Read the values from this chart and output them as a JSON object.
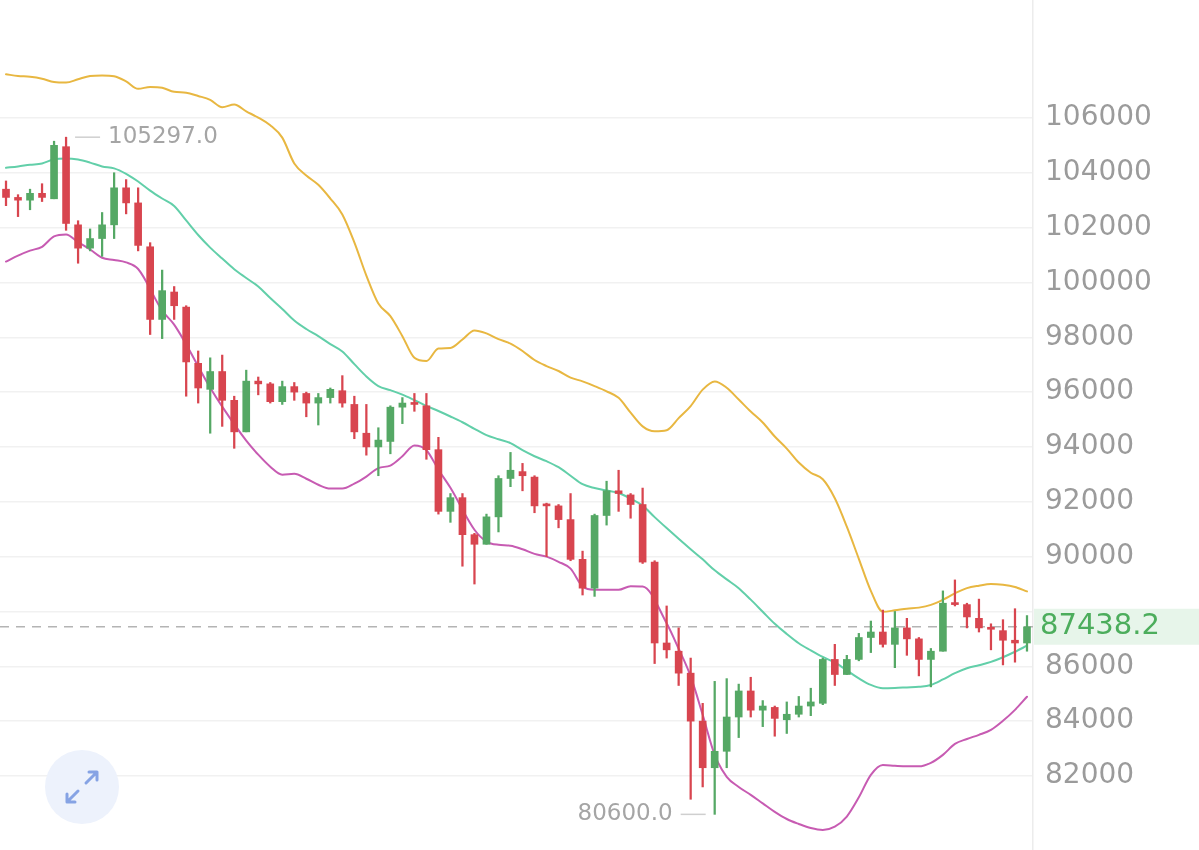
{
  "chart_data": {
    "type": "candlestick",
    "categories": [
      null,
      null,
      null,
      null,
      null,
      null,
      null,
      null,
      null,
      null,
      null,
      null,
      null,
      null,
      null,
      null,
      null,
      null,
      null,
      null,
      null,
      null,
      null,
      null,
      null,
      null,
      null,
      null,
      null,
      null,
      null,
      null,
      null,
      null,
      null,
      null,
      null,
      null,
      null,
      null,
      null,
      null,
      null,
      null,
      null,
      null,
      null,
      null,
      null,
      null,
      null,
      null,
      null,
      null,
      null,
      null,
      null,
      null,
      null,
      null,
      null,
      null,
      null,
      null,
      null,
      null,
      null,
      null,
      null,
      null,
      null,
      null,
      null,
      null,
      null,
      null,
      null,
      null,
      null,
      null,
      null,
      null,
      null,
      null,
      null,
      null
    ],
    "ohlc": [
      [
        103400,
        103700,
        102800,
        103100
      ],
      [
        103100,
        103200,
        102400,
        103000
      ],
      [
        103000,
        103400,
        102650,
        103250
      ],
      [
        103250,
        103600,
        102950,
        103100
      ],
      [
        103050,
        105150,
        103050,
        105000
      ],
      [
        104950,
        105297,
        101900,
        102150
      ],
      [
        102100,
        102250,
        100700,
        101250
      ],
      [
        101250,
        101950,
        101150,
        101600
      ],
      [
        101600,
        102550,
        100950,
        102100
      ],
      [
        102100,
        104000,
        101600,
        103450
      ],
      [
        103450,
        103750,
        102500,
        102900
      ],
      [
        102900,
        103450,
        101150,
        101350
      ],
      [
        101300,
        101450,
        98100,
        98650
      ],
      [
        98650,
        100450,
        97950,
        99700
      ],
      [
        99650,
        99850,
        98650,
        99150
      ],
      [
        99100,
        99150,
        95850,
        97100
      ],
      [
        97050,
        97500,
        95600,
        96150
      ],
      [
        96100,
        97250,
        94500,
        96750
      ],
      [
        96750,
        97350,
        94750,
        95700
      ],
      [
        95700,
        95850,
        93950,
        94550
      ],
      [
        94550,
        96800,
        94550,
        96400
      ],
      [
        96400,
        96550,
        95900,
        96300
      ],
      [
        96300,
        96350,
        95600,
        95650
      ],
      [
        95650,
        96400,
        95550,
        96200
      ],
      [
        96200,
        96350,
        95700,
        96000
      ],
      [
        95950,
        96000,
        95100,
        95600
      ],
      [
        95600,
        95950,
        94800,
        95800
      ],
      [
        95800,
        96150,
        95600,
        96100
      ],
      [
        96050,
        96600,
        95450,
        95600
      ],
      [
        95550,
        95850,
        94300,
        94550
      ],
      [
        94500,
        95550,
        93700,
        94000
      ],
      [
        94000,
        94700,
        92950,
        94250
      ],
      [
        94200,
        95500,
        93750,
        95450
      ],
      [
        95450,
        95800,
        94850,
        95600
      ],
      [
        95600,
        95950,
        95300,
        95550
      ],
      [
        95500,
        95950,
        93550,
        93900
      ],
      [
        93900,
        94350,
        91550,
        91650
      ],
      [
        91650,
        92300,
        91250,
        92150
      ],
      [
        92150,
        92300,
        89650,
        90800
      ],
      [
        90800,
        90850,
        89000,
        90450
      ],
      [
        90450,
        91550,
        90450,
        91450
      ],
      [
        91450,
        92950,
        90900,
        92850
      ],
      [
        92850,
        93800,
        92550,
        93150
      ],
      [
        93100,
        93400,
        92400,
        92950
      ],
      [
        92900,
        92950,
        91600,
        91850
      ],
      [
        91900,
        91950,
        90000,
        91850
      ],
      [
        91850,
        91900,
        91050,
        91350
      ],
      [
        91350,
        92300,
        89850,
        89900
      ],
      [
        89900,
        90200,
        88600,
        88850
      ],
      [
        88850,
        91550,
        88550,
        91500
      ],
      [
        91500,
        92750,
        91150,
        92400
      ],
      [
        92400,
        93150,
        91650,
        92300
      ],
      [
        92250,
        92300,
        91400,
        91900
      ],
      [
        91900,
        92500,
        89750,
        89800
      ],
      [
        89800,
        89850,
        86100,
        86850
      ],
      [
        86850,
        88200,
        86300,
        86600
      ],
      [
        86550,
        87400,
        85300,
        85750
      ],
      [
        85750,
        86300,
        81150,
        84000
      ],
      [
        84000,
        84650,
        81600,
        82300
      ],
      [
        82300,
        85450,
        80600,
        82900
      ],
      [
        82900,
        85550,
        82300,
        84150
      ],
      [
        84150,
        85350,
        83400,
        85100
      ],
      [
        85100,
        85600,
        84150,
        84400
      ],
      [
        84400,
        84750,
        83800,
        84550
      ],
      [
        84500,
        84550,
        83450,
        84100
      ],
      [
        84050,
        84700,
        83550,
        84250
      ],
      [
        84250,
        84900,
        84150,
        84550
      ],
      [
        84550,
        85200,
        84200,
        84700
      ],
      [
        84650,
        86300,
        84600,
        86250
      ],
      [
        86250,
        86800,
        85300,
        85700
      ],
      [
        85700,
        86400,
        85700,
        86250
      ],
      [
        86250,
        87200,
        86200,
        87050
      ],
      [
        87050,
        87650,
        86500,
        87250
      ],
      [
        87250,
        88050,
        86700,
        86800
      ],
      [
        86800,
        88000,
        85950,
        87400
      ],
      [
        87400,
        87750,
        86400,
        87000
      ],
      [
        87000,
        87050,
        85650,
        86250
      ],
      [
        86250,
        86650,
        85250,
        86550
      ],
      [
        86550,
        88750,
        86550,
        88300
      ],
      [
        88300,
        89150,
        88200,
        88250
      ],
      [
        88250,
        88300,
        87400,
        87800
      ],
      [
        87750,
        88450,
        87250,
        87400
      ],
      [
        87400,
        87550,
        86600,
        87350
      ],
      [
        87300,
        87700,
        86050,
        86950
      ],
      [
        86950,
        88100,
        86150,
        86850
      ],
      [
        86850,
        87850,
        86550,
        87438.2
      ]
    ],
    "colors": [
      "#d8454f",
      "#d8454f",
      "#55a865",
      "#d8454f",
      "#55a865",
      "#d8454f",
      "#d8454f",
      "#55a865",
      "#55a865",
      "#55a865",
      "#d8454f",
      "#d8454f",
      "#d8454f",
      "#55a865",
      "#d8454f",
      "#d8454f",
      "#d8454f",
      "#55a865",
      "#d8454f",
      "#d8454f",
      "#55a865",
      "#d8454f",
      "#d8454f",
      "#55a865",
      "#d8454f",
      "#d8454f",
      "#55a865",
      "#55a865",
      "#d8454f",
      "#d8454f",
      "#d8454f",
      "#55a865",
      "#55a865",
      "#55a865",
      "#d8454f",
      "#d8454f",
      "#d8454f",
      "#55a865",
      "#d8454f",
      "#d8454f",
      "#55a865",
      "#55a865",
      "#55a865",
      "#d8454f",
      "#d8454f",
      "#d8454f",
      "#d8454f",
      "#d8454f",
      "#d8454f",
      "#55a865",
      "#55a865",
      "#d8454f",
      "#d8454f",
      "#d8454f",
      "#d8454f",
      "#d8454f",
      "#d8454f",
      "#d8454f",
      "#d8454f",
      "#55a865",
      "#55a865",
      "#55a865",
      "#d8454f",
      "#55a865",
      "#d8454f",
      "#55a865",
      "#55a865",
      "#55a865",
      "#55a865",
      "#d8454f",
      "#55a865",
      "#55a865",
      "#55a865",
      "#d8454f",
      "#55a865",
      "#d8454f",
      "#d8454f",
      "#55a865",
      "#55a865",
      "#d8454f",
      "#d8454f",
      "#d8454f",
      "#d8454f",
      "#d8454f",
      "#d8454f",
      "#55a865"
    ],
    "series": [
      {
        "type": "line",
        "color": "#e8b741",
        "values": [
          107590,
          107530,
          107500,
          107430,
          107310,
          107290,
          107410,
          107530,
          107550,
          107520,
          107330,
          107060,
          107130,
          107100,
          106950,
          106920,
          106800,
          106660,
          106390,
          106490,
          106240,
          106010,
          105730,
          105280,
          104340,
          103900,
          103560,
          103060,
          102480,
          101460,
          100250,
          99230,
          98770,
          98040,
          97250,
          97130,
          97590,
          97610,
          97920,
          98250,
          98140,
          97930,
          97770,
          97500,
          97170,
          96950,
          96770,
          96530,
          96390,
          96220,
          96030,
          95790,
          95250,
          94750,
          94570,
          94610,
          95050,
          95490,
          96090,
          96390,
          96160,
          95730,
          95290,
          94890,
          94380,
          93940,
          93430,
          93060,
          92820,
          92130,
          91090,
          89920,
          88750,
          87990,
          88040,
          88100,
          88140,
          88240,
          88430,
          88660,
          88850,
          88940,
          89000,
          88970,
          88890,
          88730
        ]
      },
      {
        "type": "line",
        "color": "#62cfa9",
        "values": [
          104180,
          104230,
          104290,
          104340,
          104490,
          104520,
          104480,
          104370,
          104230,
          104160,
          103960,
          103680,
          103350,
          103060,
          102790,
          102260,
          101730,
          101270,
          100870,
          100480,
          100160,
          99850,
          99430,
          99030,
          98610,
          98300,
          98040,
          97750,
          97480,
          97020,
          96570,
          96220,
          96070,
          95910,
          95710,
          95500,
          95310,
          95110,
          94900,
          94660,
          94430,
          94280,
          94140,
          93880,
          93660,
          93480,
          93260,
          92950,
          92640,
          92500,
          92410,
          92320,
          92110,
          91860,
          91440,
          91040,
          90650,
          90270,
          89900,
          89500,
          89170,
          88850,
          88430,
          87990,
          87550,
          87180,
          86840,
          86580,
          86340,
          86140,
          85850,
          85560,
          85320,
          85200,
          85210,
          85230,
          85250,
          85320,
          85520,
          85750,
          85930,
          86040,
          86160,
          86330,
          86530,
          86750
        ]
      },
      {
        "type": "line",
        "color": "#c75bb2",
        "values": [
          100760,
          100980,
          101160,
          101300,
          101680,
          101750,
          101470,
          101200,
          100900,
          100820,
          100730,
          100490,
          null,
          98970,
          98460,
          null,
          null,
          96160,
          95470,
          null,
          94230,
          93720,
          93280,
          92990,
          93020,
          92840,
          92620,
          92480,
          92480,
          92660,
          92920,
          93230,
          93320,
          93660,
          94050,
          93880,
          93170,
          92510,
          null,
          90980,
          90550,
          90430,
          90400,
          90270,
          90100,
          90000,
          89810,
          89560,
          88910,
          88790,
          88790,
          88790,
          88920,
          88910,
          null,
          87570,
          86640,
          85630,
          84230,
          82770,
          81970,
          81600,
          81310,
          81000,
          80690,
          80430,
          80250,
          80100,
          80030,
          80150,
          80520,
          81220,
          82040,
          82400,
          82370,
          82350,
          82350,
          82480,
          82770,
          83170,
          83350,
          83500,
          83680,
          84010,
          84410,
          84890
        ]
      }
    ],
    "ylim": [
      79300,
      110300
    ],
    "yticks": [
      82000,
      84000,
      86000,
      {
        "value": 88000,
        "label": null
      },
      90000,
      92000,
      94000,
      96000,
      98000,
      100000,
      102000,
      104000,
      106000
    ],
    "grid": "y",
    "tick_labels": "y",
    "legend": false,
    "marker": "none",
    "ref_lines": [
      {
        "axis": "y",
        "value": 87438.2,
        "label": "87438.2",
        "color": "#b4b4b4",
        "line_style": "dashed"
      }
    ],
    "annotations": [
      "105297.0",
      "80600.0"
    ]
  }
}
